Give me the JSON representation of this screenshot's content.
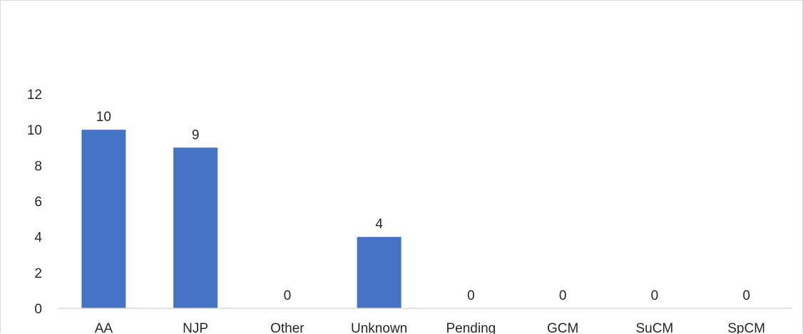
{
  "chart_data": {
    "type": "bar",
    "categories": [
      "AA",
      "NJP",
      "Other",
      "Unknown",
      "Pending",
      "GCM",
      "SuCM",
      "SpCM"
    ],
    "values": [
      10,
      9,
      0,
      4,
      0,
      0,
      0,
      0
    ],
    "y_ticks": [
      "0",
      "2",
      "4",
      "6",
      "8",
      "10",
      "12"
    ],
    "ylim": [
      0,
      12
    ],
    "data_labels": [
      "10",
      "9",
      "0",
      "4",
      "0",
      "0",
      "0",
      "0"
    ],
    "title": "",
    "xlabel": "",
    "ylabel": "",
    "grid": false,
    "legend": "none",
    "bar_color": "#4472C4"
  }
}
